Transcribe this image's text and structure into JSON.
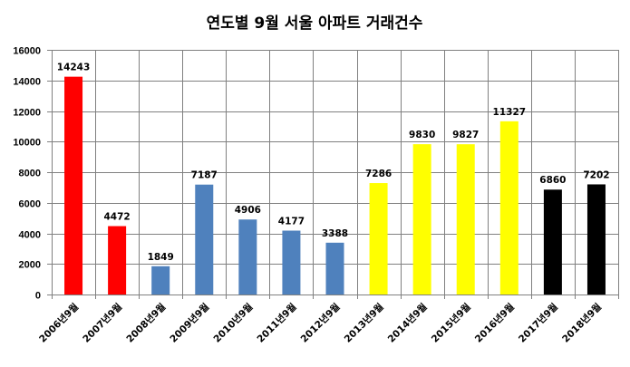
{
  "chart_data": {
    "type": "bar",
    "title": "연도별 9월 서울 아파트 거래건수",
    "xlabel": "",
    "ylabel": "",
    "ylim": [
      0,
      16000
    ],
    "yticks": [
      0,
      2000,
      4000,
      6000,
      8000,
      10000,
      12000,
      14000,
      16000
    ],
    "grid": true,
    "categories": [
      "2006년9월",
      "2007년9월",
      "2008년9월",
      "2009년9월",
      "2010년9월",
      "2011년9월",
      "2012년9월",
      "2013년9월",
      "2014년9월",
      "2015년9월",
      "2016년9월",
      "2017년9월",
      "2018년9월"
    ],
    "values": [
      14243,
      4472,
      1849,
      7187,
      4906,
      4177,
      3388,
      7286,
      9830,
      9827,
      11327,
      6860,
      7202
    ],
    "colors": [
      "#ff0000",
      "#ff0000",
      "#4f81bd",
      "#4f81bd",
      "#4f81bd",
      "#4f81bd",
      "#4f81bd",
      "#ffff00",
      "#ffff00",
      "#ffff00",
      "#ffff00",
      "#000000",
      "#000000"
    ],
    "grid_color": "#808080"
  }
}
